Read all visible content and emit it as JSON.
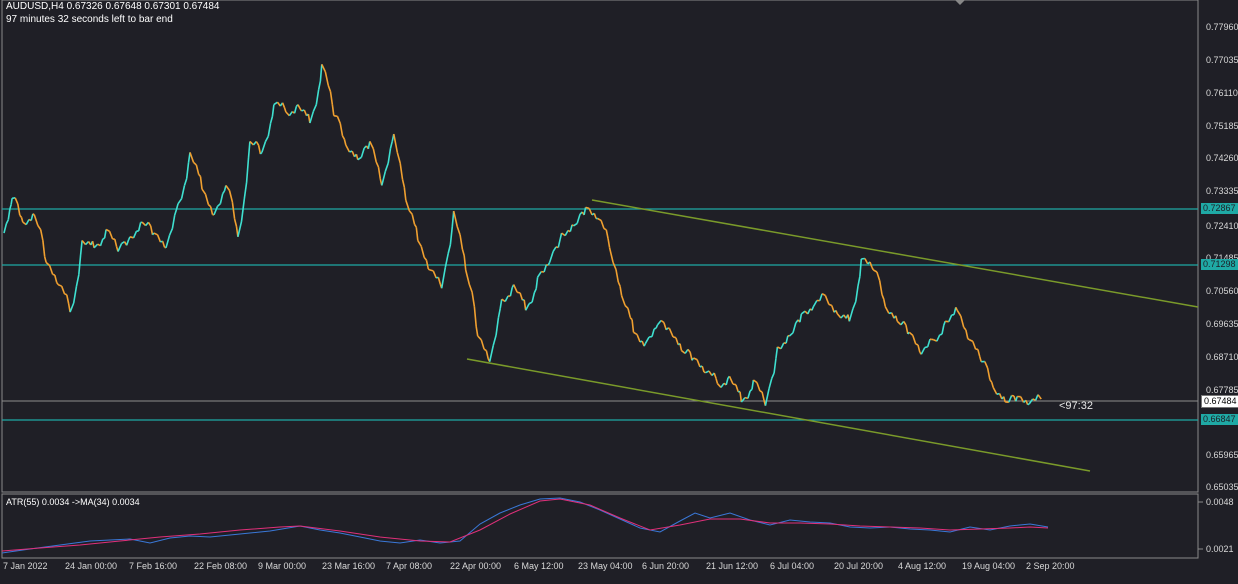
{
  "header": {
    "symbol_line": "AUDUSD,H4  0.67326 0.67648 0.67301 0.67484",
    "timer_line": "97 minutes 32 seconds left to bar end"
  },
  "price_axis": {
    "labels": [
      "0.77960",
      "0.77035",
      "0.76110",
      "0.75185",
      "0.74260",
      "0.73335",
      "0.72410",
      "0.71485",
      "0.70560",
      "0.69635",
      "0.68710",
      "0.67785",
      "0.65965",
      "0.65035"
    ],
    "range": [
      0.6495,
      0.7835
    ]
  },
  "level_tags": {
    "upper": "0.72867",
    "middle": "0.71298",
    "current": "0.67484",
    "lower": "0.66847"
  },
  "countdown": "<97:32",
  "time_axis": {
    "labels": [
      "7 Jan 2022",
      "24 Jan 00:00",
      "7 Feb 16:00",
      "22 Feb 08:00",
      "9 Mar 00:00",
      "23 Mar 16:00",
      "7 Apr 08:00",
      "22 Apr 00:00",
      "6 May 12:00",
      "23 May 04:00",
      "6 Jun 20:00",
      "21 Jun 12:00",
      "6 Jul 04:00",
      "20 Jul 20:00",
      "4 Aug 12:00",
      "19 Aug 04:00",
      "2 Sep 20:00"
    ]
  },
  "indicator": {
    "label": "ATR(55) 0.0034  ->MA(34) 0.0034",
    "axis_labels": [
      "0.0048",
      "0.0021"
    ]
  },
  "colors": {
    "background": "#1f1f26",
    "candle_up": "#3fe0d0",
    "candle_down": "#f0a030",
    "level_line": "#1fa9a5",
    "trend_line": "#7a9a2a",
    "atr_line": "#3a78d8",
    "ma_line": "#e0307a"
  },
  "chart_data": {
    "type": "line",
    "series": [
      {
        "values": [
          0.72,
          0.7295,
          0.723,
          0.725,
          0.712,
          0.706,
          0.6985,
          0.718,
          0.716,
          0.721,
          0.715,
          0.719,
          0.723,
          0.72,
          0.716,
          0.728,
          0.742,
          0.732,
          0.725,
          0.733,
          0.719,
          0.745,
          0.742,
          0.755,
          0.753,
          0.755,
          0.75,
          0.766,
          0.752,
          0.744,
          0.74,
          0.745,
          0.733,
          0.747,
          0.729,
          0.718,
          0.71,
          0.705,
          0.726,
          0.71,
          0.692,
          0.685,
          0.702,
          0.706,
          0.699,
          0.708,
          0.712,
          0.72,
          0.722,
          0.727,
          0.724,
          0.716,
          0.703,
          0.693,
          0.69,
          0.695,
          0.694,
          0.688,
          0.686,
          0.682,
          0.679,
          0.681,
          0.674,
          0.68,
          0.673,
          0.689,
          0.692,
          0.698,
          0.7,
          0.703,
          0.698,
          0.696,
          0.713,
          0.71,
          0.7,
          0.696,
          0.693,
          0.687,
          0.691,
          0.696,
          0.699,
          0.691,
          0.685,
          0.678,
          0.674,
          0.6755,
          0.6735,
          0.6748
        ]
      }
    ]
  }
}
